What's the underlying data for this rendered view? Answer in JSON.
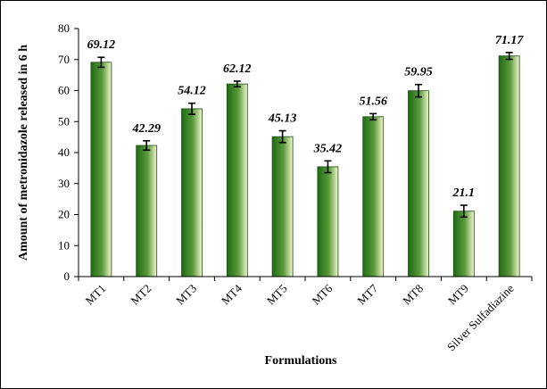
{
  "chart_data": {
    "type": "bar",
    "title": "",
    "xlabel": "Formulations",
    "ylabel": "Amount of metronidazole released in 6 h",
    "ylim": [
      0,
      80
    ],
    "yticks": [
      0,
      10,
      20,
      30,
      40,
      50,
      60,
      70,
      80
    ],
    "categories": [
      "MT1",
      "MT2",
      "MT3",
      "MT4",
      "MT5",
      "MT6",
      "MT7",
      "MT8",
      "MT9",
      "Silver Sulfadiazine"
    ],
    "values": [
      69.12,
      42.29,
      54.12,
      62.12,
      45.13,
      35.42,
      51.56,
      59.95,
      21.1,
      71.17
    ],
    "data_labels": [
      "69.12",
      "42.29",
      "54.12",
      "62.12",
      "45.13",
      "35.42",
      "51.56",
      "59.95",
      "21.1",
      "71.17"
    ],
    "error": [
      1.6,
      1.5,
      1.8,
      0.9,
      1.9,
      1.9,
      1.0,
      2.0,
      1.9,
      1.1
    ],
    "grid": false,
    "legend": "none",
    "bar_color_dark": "#1e6b14",
    "bar_color_light": "#f2f7cf"
  }
}
